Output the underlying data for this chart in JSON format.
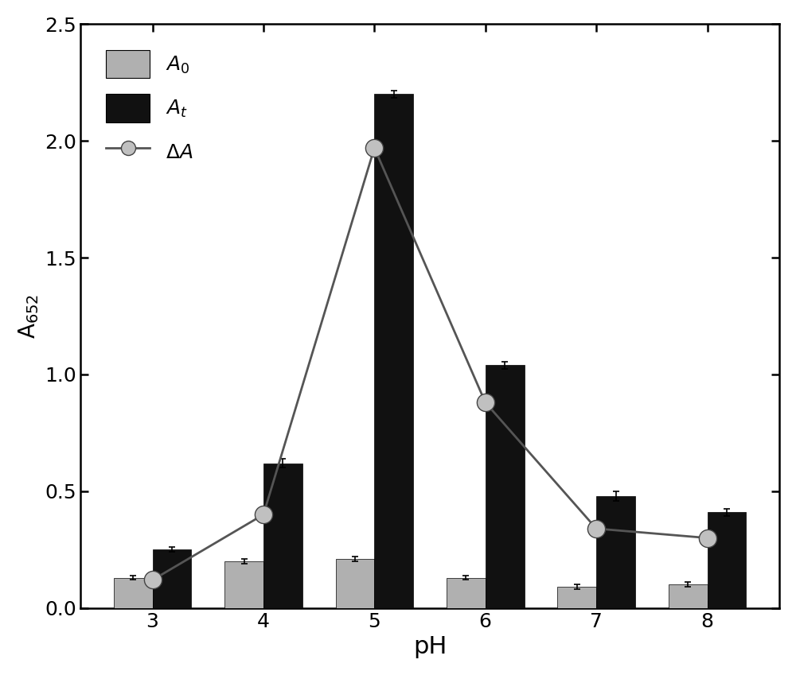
{
  "ph_values": [
    3,
    4,
    5,
    6,
    7,
    8
  ],
  "A0_values": [
    0.13,
    0.2,
    0.21,
    0.13,
    0.09,
    0.1
  ],
  "A0_errors": [
    0.01,
    0.01,
    0.01,
    0.01,
    0.01,
    0.01
  ],
  "At_values": [
    0.25,
    0.62,
    2.2,
    1.04,
    0.48,
    0.41
  ],
  "At_errors": [
    0.01,
    0.02,
    0.015,
    0.015,
    0.02,
    0.015
  ],
  "deltaA_values": [
    0.12,
    0.4,
    1.97,
    0.88,
    0.34,
    0.3
  ],
  "deltaA_errors": [
    0.01,
    0.02,
    0.02,
    0.02,
    0.02,
    0.02
  ],
  "bar_width": 0.35,
  "ylim": [
    0,
    2.5
  ],
  "yticks": [
    0.0,
    0.5,
    1.0,
    1.5,
    2.0,
    2.5
  ],
  "xlabel": "pH",
  "ylabel": "A$_{652}$",
  "ylabel_fontsize": 20,
  "xlabel_fontsize": 22,
  "tick_fontsize": 18,
  "legend_fontsize": 18,
  "A0_color": "#b0b0b0",
  "At_color": "#111111",
  "deltaA_line_color": "#555555",
  "background_color": "#ffffff"
}
